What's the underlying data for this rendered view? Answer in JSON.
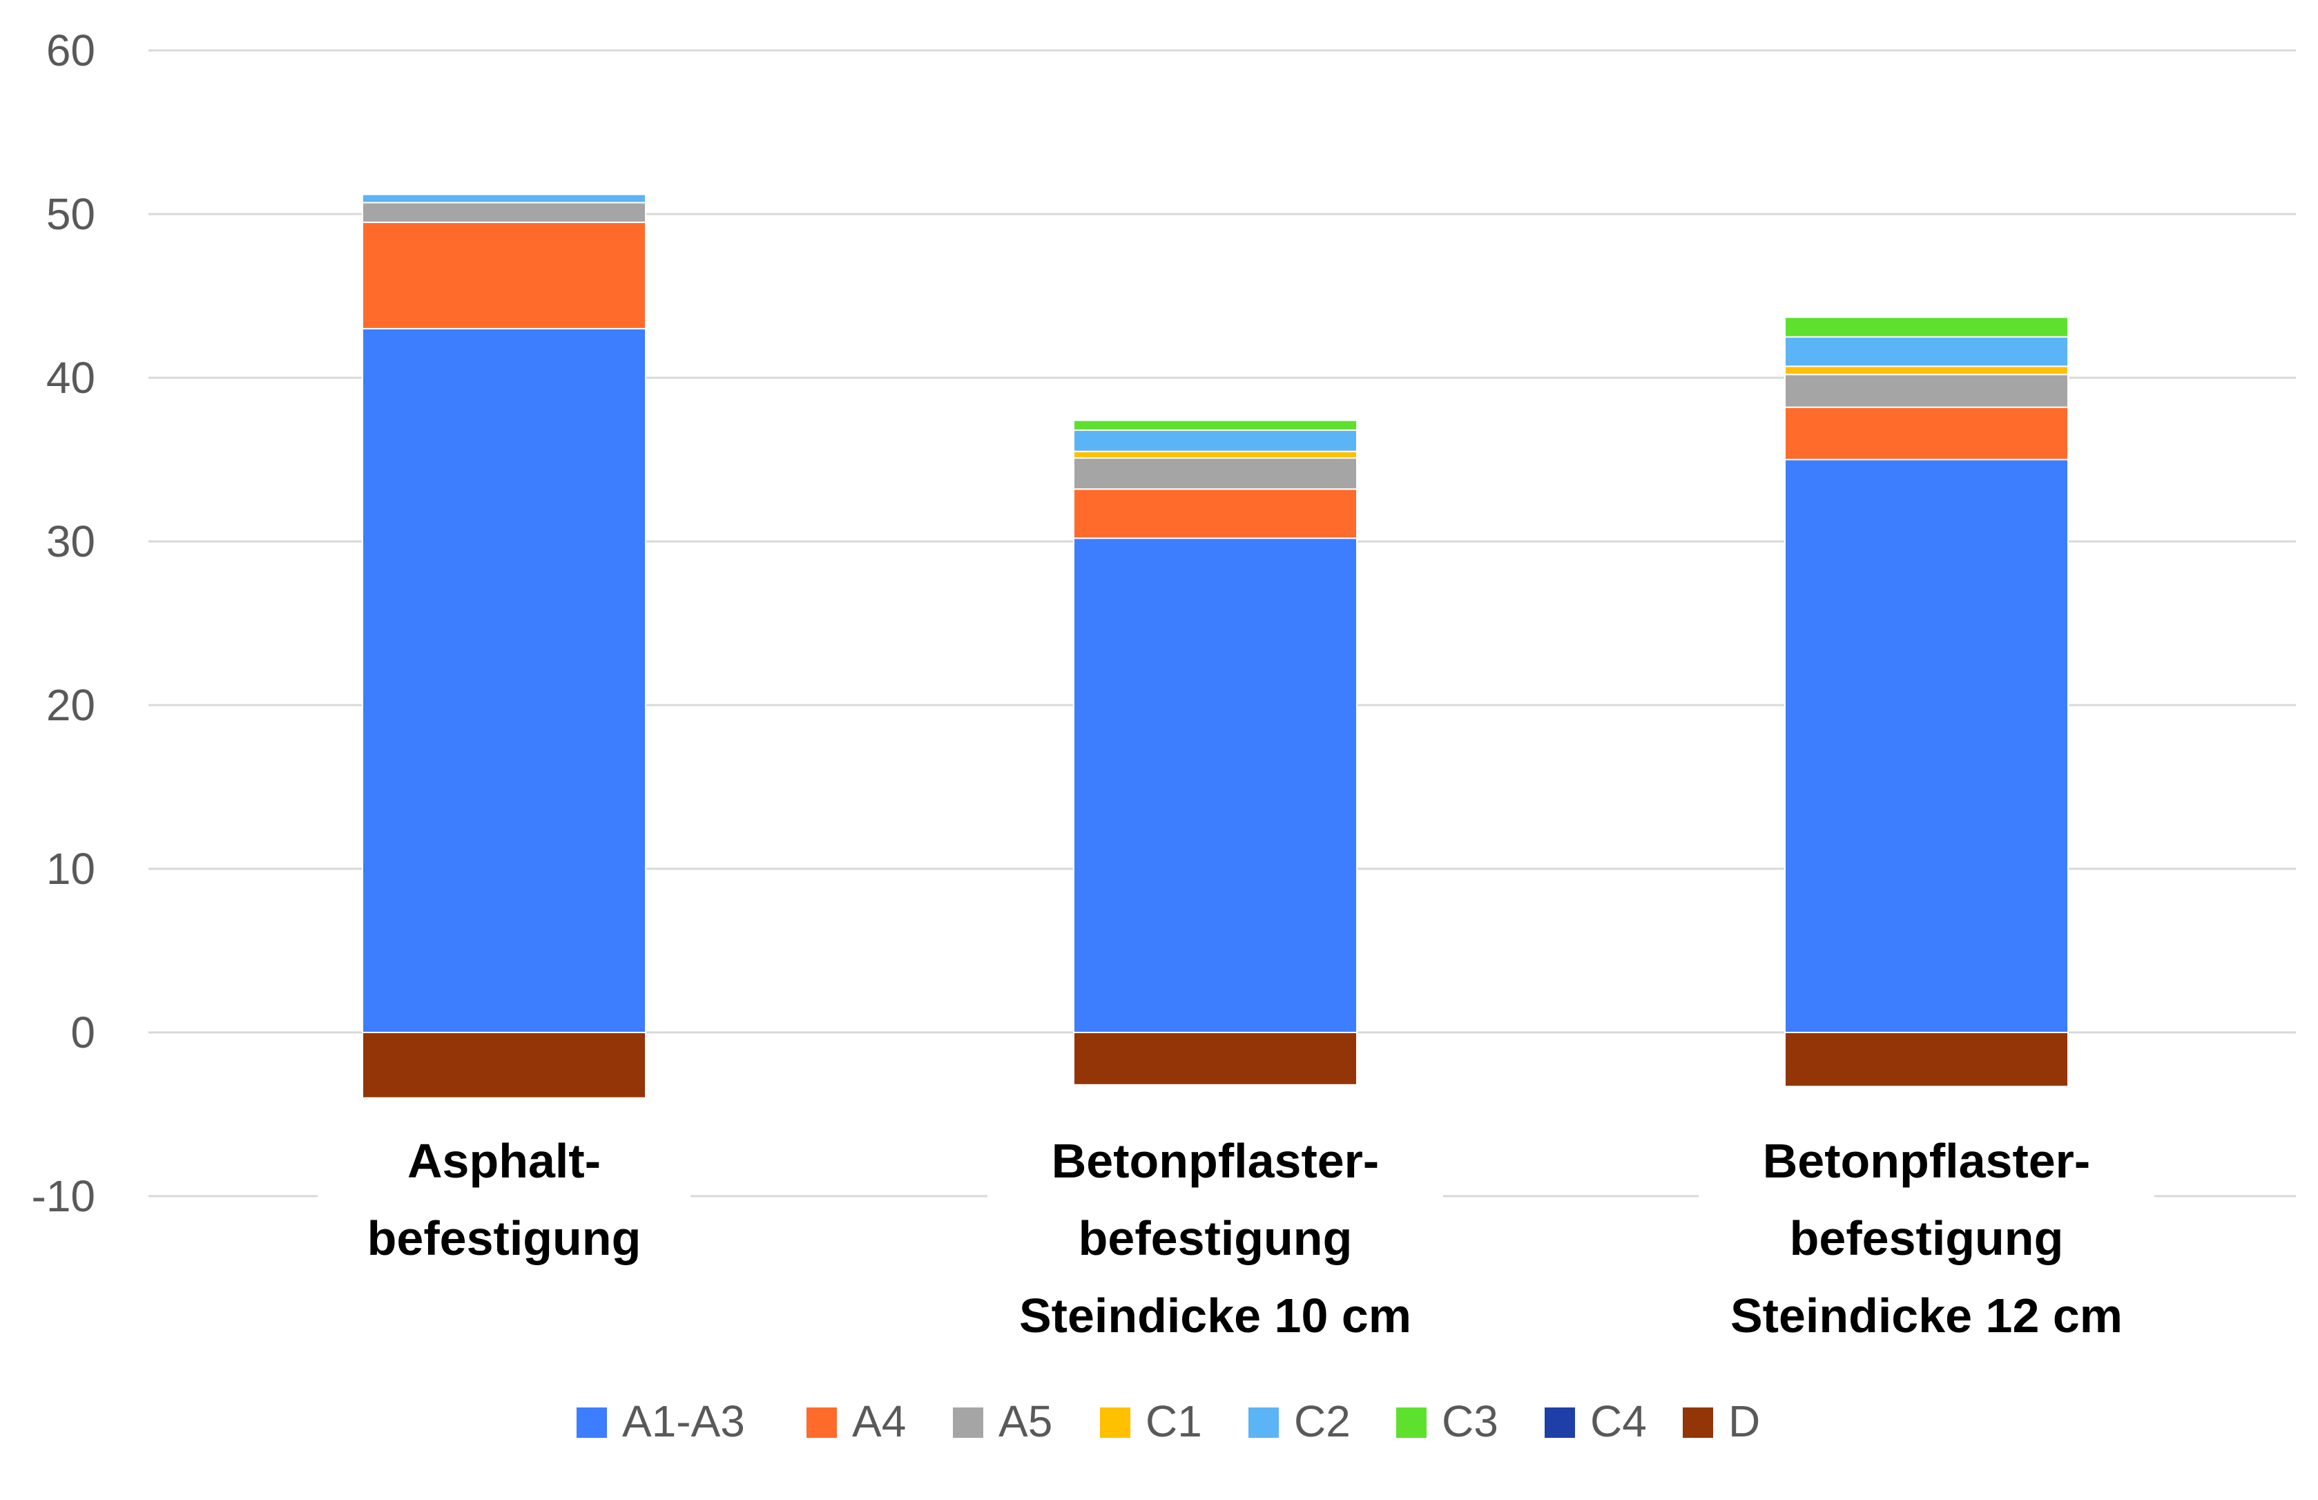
{
  "chart_data": {
    "type": "bar",
    "stacked": true,
    "title": "",
    "xlabel": "",
    "ylabel": "",
    "ylim": [
      -10,
      60
    ],
    "yticks": [
      60,
      50,
      40,
      30,
      20,
      10,
      0,
      -10
    ],
    "grid": true,
    "legend_position": "bottom",
    "categories": [
      [
        "Asphalt-",
        "befestigung"
      ],
      [
        "Betonpflaster-",
        "befestigung",
        "Steindicke 10 cm"
      ],
      [
        "Betonpflaster-",
        "befestigung",
        "Steindicke 12 cm"
      ]
    ],
    "series": [
      {
        "name": "A1-A3",
        "color": "#3D7DFF",
        "values": [
          43.0,
          30.2,
          35.0
        ]
      },
      {
        "name": "A4",
        "color": "#FF6B2B",
        "values": [
          6.5,
          3.0,
          3.2
        ]
      },
      {
        "name": "A5",
        "color": "#A5A5A5",
        "values": [
          1.2,
          1.9,
          2.0
        ]
      },
      {
        "name": "C1",
        "color": "#FFC000",
        "values": [
          0.0,
          0.4,
          0.5
        ]
      },
      {
        "name": "C2",
        "color": "#5BB4F5",
        "values": [
          0.5,
          1.3,
          1.8
        ]
      },
      {
        "name": "C3",
        "color": "#5EE12D",
        "values": [
          0.0,
          0.6,
          1.2
        ]
      },
      {
        "name": "C4",
        "color": "#1F3FA8",
        "values": [
          0.0,
          0.0,
          0.0
        ]
      },
      {
        "name": "D",
        "color": "#943508",
        "values": [
          -4.0,
          -3.2,
          -3.3
        ]
      }
    ]
  }
}
